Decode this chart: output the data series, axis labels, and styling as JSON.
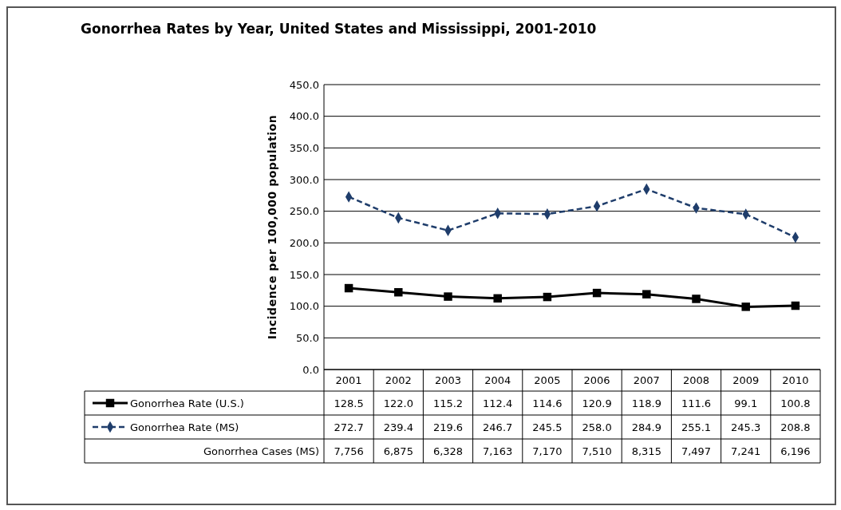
{
  "chart_data": {
    "type": "line",
    "title": "Gonorrhea Rates by Year, United States and Mississippi, 2001-2010",
    "ylabel": "Incidence per 100,000 population",
    "categories": [
      "2001",
      "2002",
      "2003",
      "2004",
      "2005",
      "2006",
      "2007",
      "2008",
      "2009",
      "2010"
    ],
    "series": [
      {
        "name": "Gonorrhea Rate (U.S.)",
        "color": "#000000",
        "marker": "square",
        "line_style": "solid",
        "values": [
          128.5,
          122.0,
          115.2,
          112.4,
          114.6,
          120.9,
          118.9,
          111.6,
          99.1,
          100.8
        ],
        "value_labels": [
          "128.5",
          "122.0",
          "115.2",
          "112.4",
          "114.6",
          "120.9",
          "118.9",
          "111.6",
          "99.1",
          "100.8"
        ]
      },
      {
        "name": "Gonorrhea Rate (MS)",
        "color": "#1f3d6b",
        "marker": "diamond",
        "line_style": "dashed",
        "values": [
          272.7,
          239.4,
          219.6,
          246.7,
          245.5,
          258.0,
          284.9,
          255.1,
          245.3,
          208.8
        ],
        "value_labels": [
          "272.7",
          "239.4",
          "219.6",
          "246.7",
          "245.5",
          "258.0",
          "284.9",
          "255.1",
          "245.3",
          "208.8"
        ]
      }
    ],
    "annotations": [
      "Gonorrhea Cases (MS)",
      "7,756",
      "6,875",
      "6,328",
      "7,163",
      "7,170",
      "7,510",
      "8,315",
      "7,497",
      "7,241",
      "6,196"
    ],
    "ylim": [
      0,
      450
    ],
    "yticks": [
      {
        "value": 0,
        "label": "0.0"
      },
      {
        "value": 50,
        "label": "50.0"
      },
      {
        "value": 100,
        "label": "100.0"
      },
      {
        "value": 150,
        "label": "150.0"
      },
      {
        "value": 200,
        "label": "200.0"
      },
      {
        "value": 250,
        "label": "250.0"
      },
      {
        "value": 300,
        "label": "300.0"
      },
      {
        "value": 350,
        "label": "350.0"
      },
      {
        "value": 400,
        "label": "400.0"
      },
      {
        "value": 450,
        "label": "450.0"
      }
    ],
    "grid": "y",
    "legend": "bottom left"
  }
}
